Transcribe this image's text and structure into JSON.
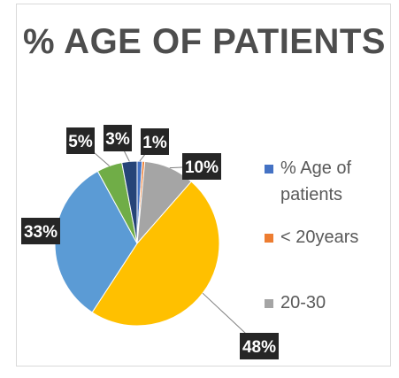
{
  "chart_data": {
    "type": "pie",
    "title": "% AGE OF PATIENTS",
    "slices": [
      {
        "label": "% Age of patients",
        "value": 1,
        "data_label": "1%",
        "color": "#4472c4"
      },
      {
        "label": "< 20years",
        "value": 0.5,
        "data_label": "",
        "color": "#ed7d31"
      },
      {
        "label": "20-30",
        "value": 10,
        "data_label": "10%",
        "color": "#a5a5a5"
      },
      {
        "label": "",
        "value": 48,
        "data_label": "48%",
        "color": "#ffc000"
      },
      {
        "label": "",
        "value": 33,
        "data_label": "33%",
        "color": "#5b9bd5"
      },
      {
        "label": "",
        "value": 5,
        "data_label": "5%",
        "color": "#70ad47"
      },
      {
        "label": "",
        "value": 3,
        "data_label": "3%",
        "color": "#264478"
      }
    ],
    "legend": [
      {
        "name": "% Age of patients",
        "color": "#4472c4"
      },
      {
        "name": "< 20years",
        "color": "#ed7d31"
      },
      {
        "name": "20-30",
        "color": "#a5a5a5"
      }
    ],
    "legend_position": "right",
    "label_box_color": "#262626"
  }
}
